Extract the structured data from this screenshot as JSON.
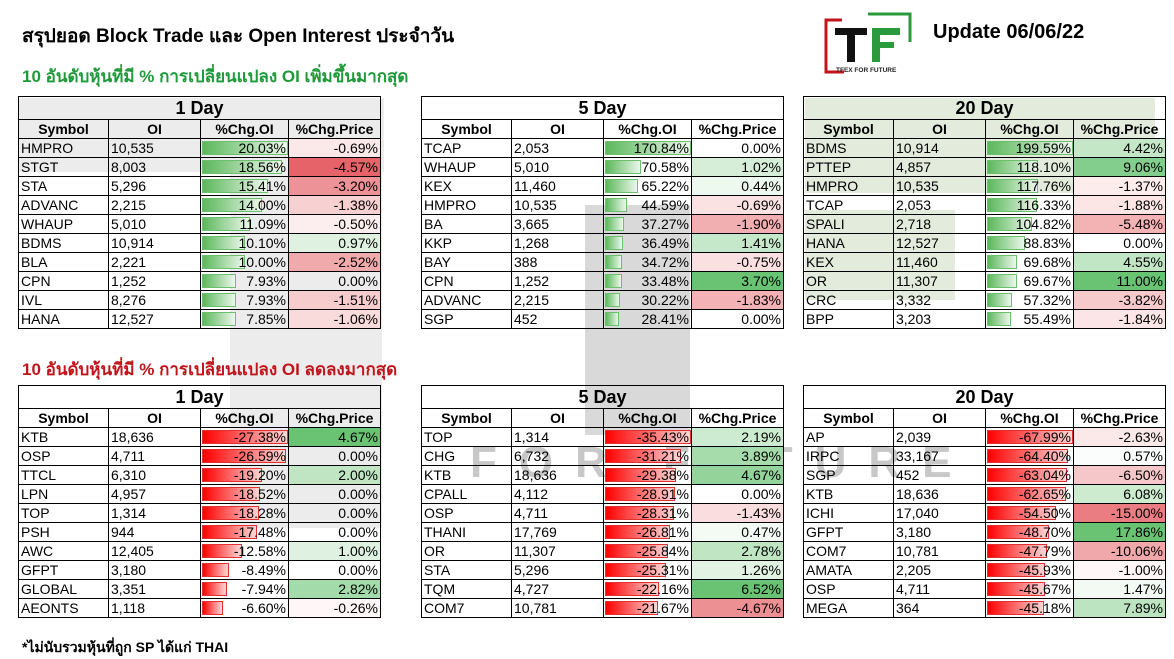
{
  "header": {
    "title": "สรุปยอด Block Trade และ Open Interest ประจำวัน",
    "update": "Update 06/06/22"
  },
  "logo": {
    "letters": "TF",
    "tagline": "TFEX FOR FUTURE"
  },
  "watermark": {
    "text": "FOR FUTURE"
  },
  "sections": {
    "up": "10 อันดับหุ้นที่มี % การเปลี่ยนแปลง OI เพิ่มขึ้นมากสุด",
    "down": "10 อันดับหุ้นที่มี % การเปลี่ยนแปลง OI ลดลงมากสุด"
  },
  "footnote": "*ไม่นับรวมหุ้นที่ถูก SP ได้แก่ THAI",
  "columns": [
    "Symbol",
    "OI",
    "%Chg.OI",
    "%Chg.Price"
  ],
  "colors": {
    "positive_bar": "#5cb85c",
    "negative_bar": "#ff0000",
    "up_title": "#1f9a3a",
    "down_title": "#c0151c"
  },
  "tables": [
    {
      "title": "1 Day",
      "group": "up",
      "rows": [
        {
          "symbol": "HMPRO",
          "oi": "10,535",
          "chg_oi": "20.03%",
          "chg_price": "-0.69%"
        },
        {
          "symbol": "STGT",
          "oi": "8,003",
          "chg_oi": "18.56%",
          "chg_price": "-4.57%"
        },
        {
          "symbol": "STA",
          "oi": "5,296",
          "chg_oi": "15.41%",
          "chg_price": "-3.20%"
        },
        {
          "symbol": "ADVANC",
          "oi": "2,215",
          "chg_oi": "14.00%",
          "chg_price": "-1.38%"
        },
        {
          "symbol": "WHAUP",
          "oi": "5,010",
          "chg_oi": "11.09%",
          "chg_price": "-0.50%"
        },
        {
          "symbol": "BDMS",
          "oi": "10,914",
          "chg_oi": "10.10%",
          "chg_price": "0.97%"
        },
        {
          "symbol": "BLA",
          "oi": "2,221",
          "chg_oi": "10.00%",
          "chg_price": "-2.52%"
        },
        {
          "symbol": "CPN",
          "oi": "1,252",
          "chg_oi": "7.93%",
          "chg_price": "0.00%"
        },
        {
          "symbol": "IVL",
          "oi": "8,276",
          "chg_oi": "7.93%",
          "chg_price": "-1.51%"
        },
        {
          "symbol": "HANA",
          "oi": "12,527",
          "chg_oi": "7.85%",
          "chg_price": "-1.06%"
        }
      ]
    },
    {
      "title": "5 Day",
      "group": "up",
      "rows": [
        {
          "symbol": "TCAP",
          "oi": "2,053",
          "chg_oi": "170.84%",
          "chg_price": "0.00%"
        },
        {
          "symbol": "WHAUP",
          "oi": "5,010",
          "chg_oi": "70.58%",
          "chg_price": "1.02%"
        },
        {
          "symbol": "KEX",
          "oi": "11,460",
          "chg_oi": "65.22%",
          "chg_price": "0.44%"
        },
        {
          "symbol": "HMPRO",
          "oi": "10,535",
          "chg_oi": "44.59%",
          "chg_price": "-0.69%"
        },
        {
          "symbol": "BA",
          "oi": "3,665",
          "chg_oi": "37.27%",
          "chg_price": "-1.90%"
        },
        {
          "symbol": "KKP",
          "oi": "1,268",
          "chg_oi": "36.49%",
          "chg_price": "1.41%"
        },
        {
          "symbol": "BAY",
          "oi": "388",
          "chg_oi": "34.72%",
          "chg_price": "-0.75%"
        },
        {
          "symbol": "CPN",
          "oi": "1,252",
          "chg_oi": "33.48%",
          "chg_price": "3.70%"
        },
        {
          "symbol": "ADVANC",
          "oi": "2,215",
          "chg_oi": "30.22%",
          "chg_price": "-1.83%"
        },
        {
          "symbol": "SGP",
          "oi": "452",
          "chg_oi": "28.41%",
          "chg_price": "0.00%"
        }
      ]
    },
    {
      "title": "20 Day",
      "group": "up",
      "rows": [
        {
          "symbol": "BDMS",
          "oi": "10,914",
          "chg_oi": "199.59%",
          "chg_price": "4.42%"
        },
        {
          "symbol": "PTTEP",
          "oi": "4,857",
          "chg_oi": "118.10%",
          "chg_price": "9.06%"
        },
        {
          "symbol": "HMPRO",
          "oi": "10,535",
          "chg_oi": "117.76%",
          "chg_price": "-1.37%"
        },
        {
          "symbol": "TCAP",
          "oi": "2,053",
          "chg_oi": "116.33%",
          "chg_price": "-1.88%"
        },
        {
          "symbol": "SPALI",
          "oi": "2,718",
          "chg_oi": "104.82%",
          "chg_price": "-5.48%"
        },
        {
          "symbol": "HANA",
          "oi": "12,527",
          "chg_oi": "88.83%",
          "chg_price": "0.00%"
        },
        {
          "symbol": "KEX",
          "oi": "11,460",
          "chg_oi": "69.68%",
          "chg_price": "4.55%"
        },
        {
          "symbol": "OR",
          "oi": "11,307",
          "chg_oi": "69.67%",
          "chg_price": "11.00%"
        },
        {
          "symbol": "CRC",
          "oi": "3,332",
          "chg_oi": "57.32%",
          "chg_price": "-3.82%"
        },
        {
          "symbol": "BPP",
          "oi": "3,203",
          "chg_oi": "55.49%",
          "chg_price": "-1.84%"
        }
      ]
    },
    {
      "title": "1 Day",
      "group": "down",
      "rows": [
        {
          "symbol": "KTB",
          "oi": "18,636",
          "chg_oi": "-27.38%",
          "chg_price": "4.67%"
        },
        {
          "symbol": "OSP",
          "oi": "4,711",
          "chg_oi": "-26.59%",
          "chg_price": "0.00%"
        },
        {
          "symbol": "TTCL",
          "oi": "6,310",
          "chg_oi": "-19.20%",
          "chg_price": "2.00%"
        },
        {
          "symbol": "LPN",
          "oi": "4,957",
          "chg_oi": "-18.52%",
          "chg_price": "0.00%"
        },
        {
          "symbol": "TOP",
          "oi": "1,314",
          "chg_oi": "-18.28%",
          "chg_price": "0.00%"
        },
        {
          "symbol": "PSH",
          "oi": "944",
          "chg_oi": "-17.48%",
          "chg_price": "0.00%"
        },
        {
          "symbol": "AWC",
          "oi": "12,405",
          "chg_oi": "-12.58%",
          "chg_price": "1.00%"
        },
        {
          "symbol": "GFPT",
          "oi": "3,180",
          "chg_oi": "-8.49%",
          "chg_price": "0.00%"
        },
        {
          "symbol": "GLOBAL",
          "oi": "3,351",
          "chg_oi": "-7.94%",
          "chg_price": "2.82%"
        },
        {
          "symbol": "AEONTS",
          "oi": "1,118",
          "chg_oi": "-6.60%",
          "chg_price": "-0.26%"
        }
      ]
    },
    {
      "title": "5 Day",
      "group": "down",
      "rows": [
        {
          "symbol": "TOP",
          "oi": "1,314",
          "chg_oi": "-35.43%",
          "chg_price": "2.19%"
        },
        {
          "symbol": "CHG",
          "oi": "6,732",
          "chg_oi": "-31.21%",
          "chg_price": "3.89%"
        },
        {
          "symbol": "KTB",
          "oi": "18,636",
          "chg_oi": "-29.38%",
          "chg_price": "4.67%"
        },
        {
          "symbol": "CPALL",
          "oi": "4,112",
          "chg_oi": "-28.91%",
          "chg_price": "0.00%"
        },
        {
          "symbol": "OSP",
          "oi": "4,711",
          "chg_oi": "-28.31%",
          "chg_price": "-1.43%"
        },
        {
          "symbol": "THANI",
          "oi": "17,769",
          "chg_oi": "-26.81%",
          "chg_price": "0.47%"
        },
        {
          "symbol": "OR",
          "oi": "11,307",
          "chg_oi": "-25.84%",
          "chg_price": "2.78%"
        },
        {
          "symbol": "STA",
          "oi": "5,296",
          "chg_oi": "-25.31%",
          "chg_price": "1.26%"
        },
        {
          "symbol": "TQM",
          "oi": "4,727",
          "chg_oi": "-22.16%",
          "chg_price": "6.52%"
        },
        {
          "symbol": "COM7",
          "oi": "10,781",
          "chg_oi": "-21.67%",
          "chg_price": "-4.67%"
        }
      ]
    },
    {
      "title": "20 Day",
      "group": "down",
      "rows": [
        {
          "symbol": "AP",
          "oi": "2,039",
          "chg_oi": "-67.99%",
          "chg_price": "-2.63%"
        },
        {
          "symbol": "IRPC",
          "oi": "33,167",
          "chg_oi": "-64.40%",
          "chg_price": "0.57%"
        },
        {
          "symbol": "SGP",
          "oi": "452",
          "chg_oi": "-63.04%",
          "chg_price": "-6.50%"
        },
        {
          "symbol": "KTB",
          "oi": "18,636",
          "chg_oi": "-62.65%",
          "chg_price": "6.08%"
        },
        {
          "symbol": "ICHI",
          "oi": "17,040",
          "chg_oi": "-54.50%",
          "chg_price": "-15.00%"
        },
        {
          "symbol": "GFPT",
          "oi": "3,180",
          "chg_oi": "-48.70%",
          "chg_price": "17.86%"
        },
        {
          "symbol": "COM7",
          "oi": "10,781",
          "chg_oi": "-47.79%",
          "chg_price": "-10.06%"
        },
        {
          "symbol": "AMATA",
          "oi": "2,205",
          "chg_oi": "-45.93%",
          "chg_price": "-1.00%"
        },
        {
          "symbol": "OSP",
          "oi": "4,711",
          "chg_oi": "-45.67%",
          "chg_price": "1.47%"
        },
        {
          "symbol": "MEGA",
          "oi": "364",
          "chg_oi": "-45.18%",
          "chg_price": "7.89%"
        }
      ]
    }
  ]
}
